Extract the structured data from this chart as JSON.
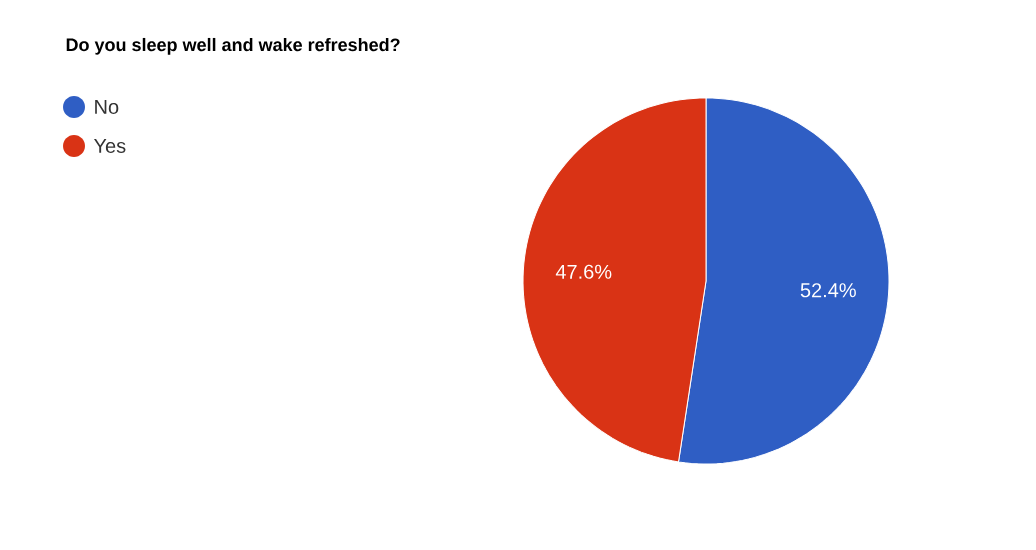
{
  "chart_data": {
    "type": "pie",
    "title": "Do you sleep well and wake refreshed?",
    "categories": [
      "No",
      "Yes"
    ],
    "values": [
      52.4,
      47.6
    ],
    "value_labels": [
      "52.4%",
      "47.6%"
    ],
    "colors": [
      "#2f5ec4",
      "#d93315"
    ],
    "legend": "top left"
  }
}
